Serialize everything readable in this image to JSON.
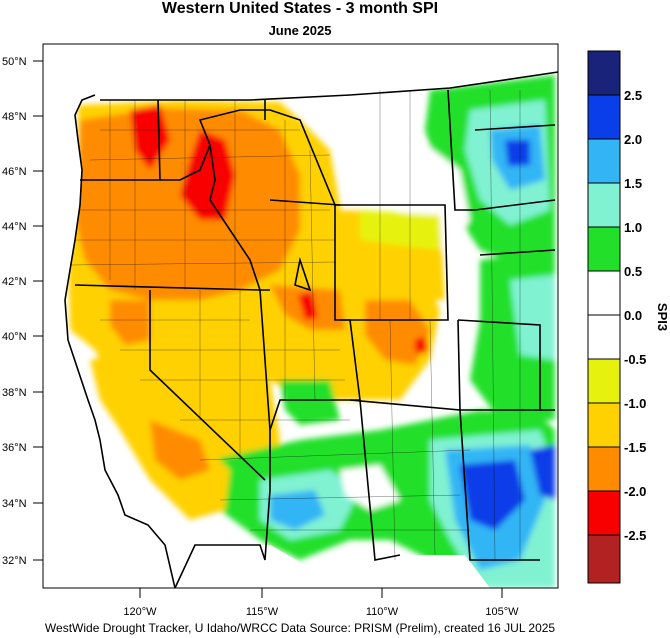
{
  "title": "Western United States - 3 month SPI",
  "subtitle": "June 2025",
  "footer": "WestWide Drought Tracker, U Idaho/WRCC Data Source: PRISM (Prelim), created 16 JUL 2025",
  "map": {
    "lat_labels": [
      "50°N",
      "48°N",
      "46°N",
      "44°N",
      "42°N",
      "40°N",
      "38°N",
      "36°N",
      "34°N",
      "32°N"
    ],
    "lon_labels": [
      "120°W",
      "115°W",
      "110°W",
      "105°W"
    ]
  },
  "colorbar": {
    "title": "SPI3",
    "labels": [
      "2.5",
      "2.0",
      "1.5",
      "1.0",
      "0.5",
      "0.0",
      "-0.5",
      "-1.0",
      "-1.5",
      "-2.0",
      "-2.5"
    ],
    "colors": [
      "#1a237a",
      "#0a3ee8",
      "#33b5f5",
      "#80f2d2",
      "#22e02a",
      "#ffffff",
      "#ffffff",
      "#e6f20e",
      "#ffd100",
      "#ff8c00",
      "#f80000",
      "#b22222"
    ]
  }
}
